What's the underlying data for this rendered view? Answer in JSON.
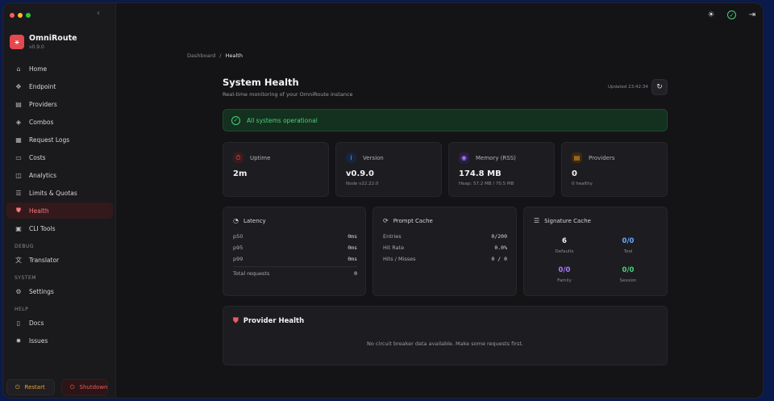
{
  "app": {
    "name": "OmniRoute",
    "version": "v0.9.0",
    "logo_glyph": "⚹"
  },
  "colors": {
    "accent": "#e5484d",
    "success": "#4ad07a",
    "warning": "#f0a030",
    "info": "#6aa8ff",
    "violet": "#a97cf8"
  },
  "sidebar": {
    "collapse_icon": "‹",
    "items": [
      {
        "label": "Home",
        "icon": "⌂"
      },
      {
        "label": "Endpoint",
        "icon": "✥"
      },
      {
        "label": "Providers",
        "icon": "▤"
      },
      {
        "label": "Combos",
        "icon": "◈"
      },
      {
        "label": "Request Logs",
        "icon": "▦"
      },
      {
        "label": "Costs",
        "icon": "▭"
      },
      {
        "label": "Analytics",
        "icon": "◫"
      },
      {
        "label": "Limits & Quotas",
        "icon": "☰"
      },
      {
        "label": "Health",
        "icon": "⛊"
      },
      {
        "label": "CLI Tools",
        "icon": "▣"
      }
    ],
    "sections": {
      "debug": "DEBUG",
      "system": "SYSTEM",
      "help": "HELP"
    },
    "debug_items": [
      {
        "label": "Translator",
        "icon": "文"
      }
    ],
    "system_items": [
      {
        "label": "Settings",
        "icon": "⚙"
      }
    ],
    "help_items": [
      {
        "label": "Docs",
        "icon": "▯"
      },
      {
        "label": "Issues",
        "icon": "✹"
      }
    ],
    "restart_label": "Restart",
    "shutdown_label": "Shutdown"
  },
  "header": {
    "theme_icon": "☀",
    "status_icon": "✓",
    "logout_icon": "⇥"
  },
  "breadcrumb": {
    "parent": "Dashboard",
    "separator": "/",
    "current": "Health"
  },
  "page": {
    "title": "System Health",
    "subtitle": "Real-time monitoring of your OmniRoute instance",
    "updated": "Updated 23:42:34",
    "refresh_icon": "↻"
  },
  "status_banner": {
    "text": "All systems operational",
    "icon": "✓"
  },
  "stats": [
    {
      "label": "Uptime",
      "value": "2m",
      "sub": "",
      "icon": "⏱",
      "color": "#ef5a5e",
      "bg": "#3a1a1d"
    },
    {
      "label": "Version",
      "value": "v0.9.0",
      "sub": "Node v22.22.0",
      "icon": "i",
      "color": "#6aa8ff",
      "bg": "#17263f"
    },
    {
      "label": "Memory (RSS)",
      "value": "174.8 MB",
      "sub": "Heap: 57.2 MB / 70.5 MB",
      "icon": "◉",
      "color": "#a97cf8",
      "bg": "#2a1e44"
    },
    {
      "label": "Providers",
      "value": "0",
      "sub": "0 healthy",
      "icon": "▤",
      "color": "#f0a030",
      "bg": "#3a2a12"
    }
  ],
  "latency": {
    "title": "Latency",
    "rows": [
      {
        "label": "p50",
        "value": "0ms"
      },
      {
        "label": "p95",
        "value": "0ms"
      },
      {
        "label": "p99",
        "value": "0ms"
      }
    ],
    "total_label": "Total requests",
    "total_value": "0"
  },
  "prompt_cache": {
    "title": "Prompt Cache",
    "rows": [
      {
        "label": "Entries",
        "value": "0/200"
      },
      {
        "label": "Hit Rate",
        "value": "0.0%"
      },
      {
        "label": "Hits / Misses",
        "value": "0 / 0"
      }
    ]
  },
  "signature_cache": {
    "title": "Signature Cache",
    "cells": [
      {
        "value": "6",
        "label": "Defaults",
        "color": "#f2f2f4"
      },
      {
        "value": "0/0",
        "label": "Tool",
        "color": "#6aa8ff"
      },
      {
        "value": "0/0",
        "label": "Family",
        "color": "#a97cf8"
      },
      {
        "value": "0/0",
        "label": "Session",
        "color": "#4ad07a"
      }
    ]
  },
  "provider_health": {
    "title": "Provider Health",
    "empty": "No circuit breaker data available. Make some requests first."
  }
}
